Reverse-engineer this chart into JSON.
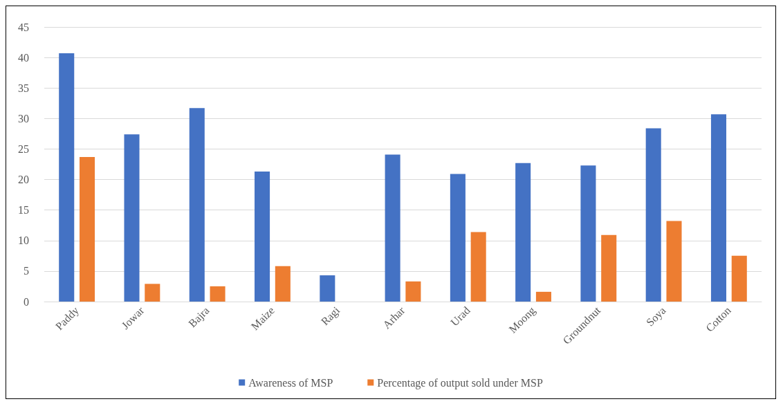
{
  "chart_data": {
    "type": "bar",
    "categories": [
      "Paddy",
      "Jowar",
      "Bajra",
      "Maize",
      "Ragi",
      "Arhar",
      "Urad",
      "Moong",
      "Groundnut",
      "Soya",
      "Cotton"
    ],
    "series": [
      {
        "name": "Awareness of MSP",
        "color": "#4472c4",
        "values": [
          40.7,
          27.4,
          31.7,
          21.3,
          4.3,
          24.1,
          20.9,
          22.7,
          22.3,
          28.4,
          30.7
        ]
      },
      {
        "name": "Percentage of output sold under MSP",
        "color": "#ed7d31",
        "values": [
          23.7,
          2.9,
          2.5,
          5.8,
          0,
          3.3,
          11.4,
          1.6,
          10.9,
          13.2,
          7.5
        ]
      }
    ],
    "ylim": [
      0,
      45
    ],
    "yticks": [
      0,
      5,
      10,
      15,
      20,
      25,
      30,
      35,
      40,
      45
    ],
    "grid": "y",
    "legend": "bottom"
  }
}
